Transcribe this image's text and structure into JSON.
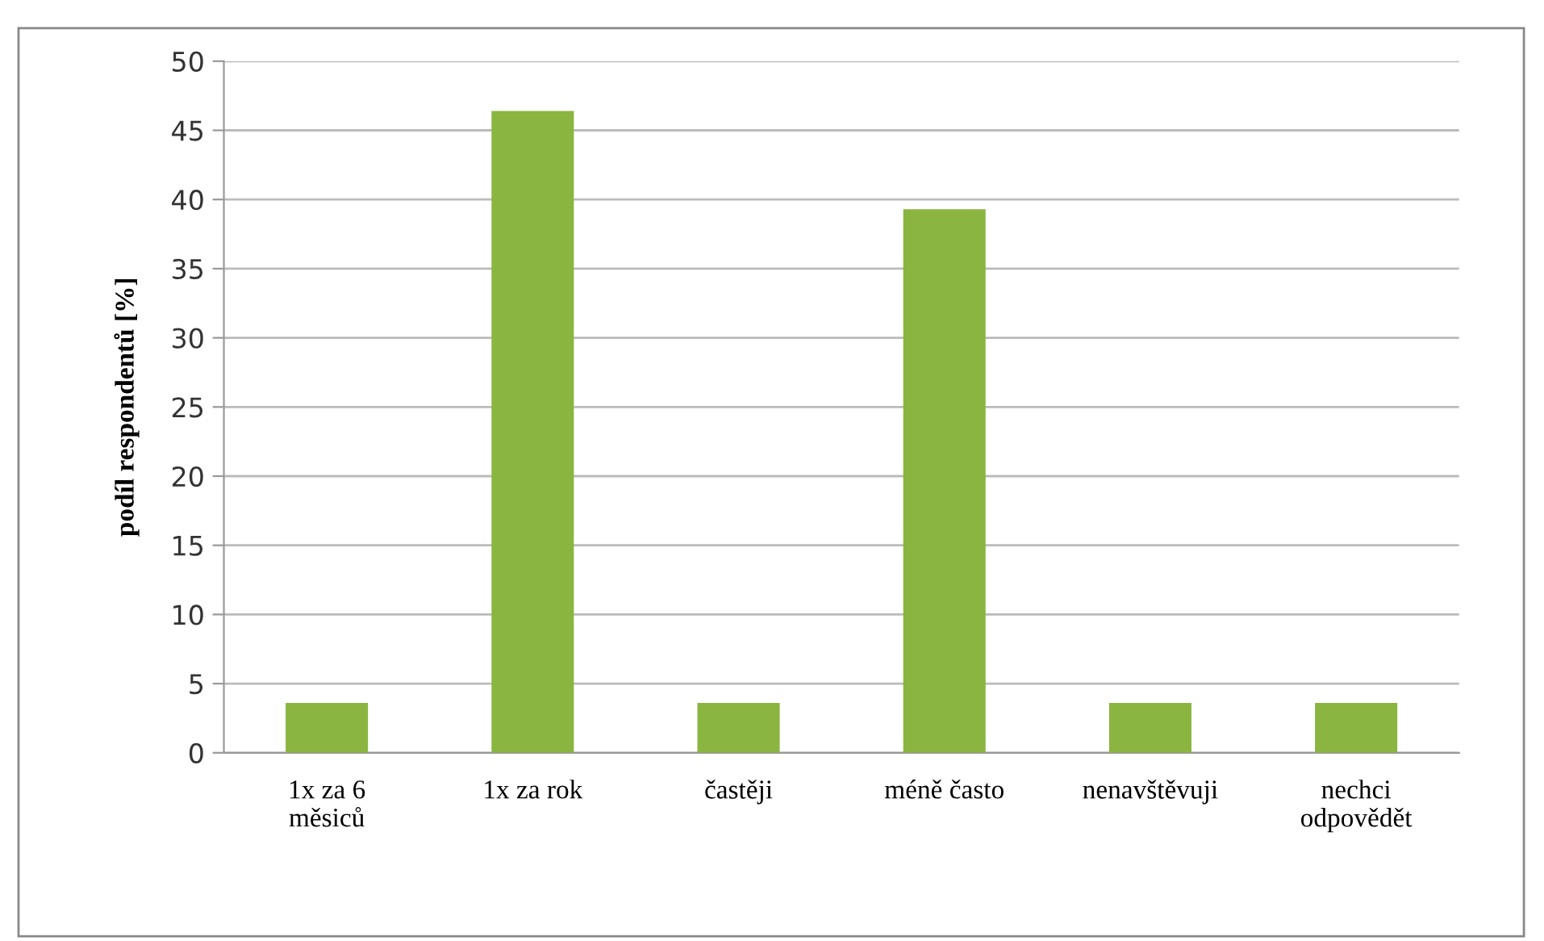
{
  "chart_data": {
    "type": "bar",
    "ylabel": "podíl respondentů [%]",
    "categories": [
      "1x za 6\nměsiců",
      "1x za rok",
      "častěji",
      "méně často",
      "nenavštěvuji",
      "nechci\nodpovědět"
    ],
    "values": [
      3.6,
      46.4,
      3.6,
      39.3,
      3.6,
      3.6
    ],
    "color": "#8ab540",
    "ylim": [
      0,
      50
    ],
    "yticks": [
      0,
      5,
      10,
      15,
      20,
      25,
      30,
      35,
      40,
      45,
      50
    ],
    "grid": "y"
  }
}
